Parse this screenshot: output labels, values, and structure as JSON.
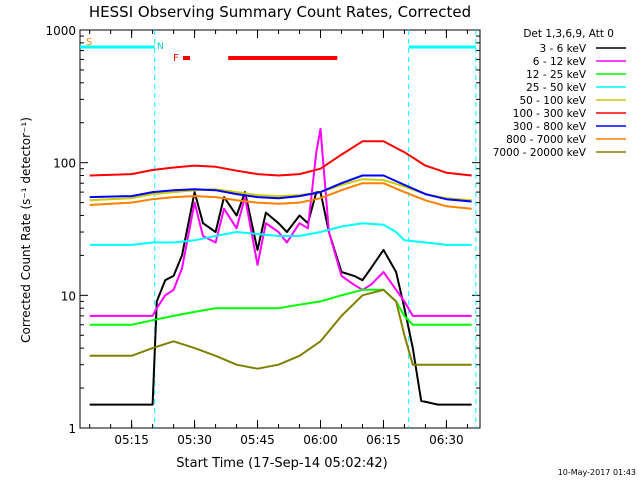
{
  "chart_data": {
    "type": "line",
    "title": "HESSI Observing Summary Count Rates, Corrected",
    "xlabel": "Start Time (17-Sep-14 05:02:42)",
    "ylabel": "Corrected Count Rate (s⁻¹ detector⁻¹)",
    "footer": "10-May-2017 01:43",
    "y_scale": "log",
    "ylim": [
      1,
      1000
    ],
    "xlim": [
      "05:02:42",
      "06:38:00"
    ],
    "x_ticks": [
      "05:15",
      "05:30",
      "05:45",
      "06:00",
      "06:15",
      "06:30"
    ],
    "y_ticks": [
      "1",
      "10",
      "100",
      "1000"
    ],
    "legend_header": "Det 1,3,6,9, Att 0",
    "legend_position": "right",
    "grid": false,
    "flags": {
      "s_label": "S",
      "n_label": "N",
      "f_label": "F",
      "saa_intervals": [
        [
          "05:02:42",
          "05:20:30"
        ],
        [
          "06:21:00",
          "06:37:00"
        ]
      ],
      "night_boundaries": [
        "05:20:30",
        "06:21:00",
        "06:37:00"
      ],
      "flare_interval": [
        "05:38:00",
        "06:04:00"
      ]
    },
    "series": [
      {
        "name": "3 - 6 keV",
        "color": "#000000",
        "x": [
          "05:05",
          "05:20",
          "05:21",
          "05:23",
          "05:25",
          "05:27",
          "05:30",
          "05:32",
          "05:35",
          "05:37",
          "05:40",
          "05:42",
          "05:45",
          "05:47",
          "05:50",
          "05:52",
          "05:55",
          "05:57",
          "05:59",
          "06:00",
          "06:02",
          "06:05",
          "06:08",
          "06:10",
          "06:12",
          "06:15",
          "06:18",
          "06:20",
          "06:22",
          "06:24",
          "06:28",
          "06:33",
          "06:36"
        ],
        "y": [
          1.5,
          1.5,
          9,
          13,
          14,
          20,
          60,
          35,
          30,
          55,
          40,
          60,
          22,
          42,
          35,
          30,
          40,
          35,
          60,
          60,
          30,
          15,
          14,
          13,
          16,
          22,
          15,
          8,
          4,
          1.6,
          1.5,
          1.5,
          1.5
        ]
      },
      {
        "name": "6 - 12 keV",
        "color": "#ff00ff",
        "x": [
          "05:05",
          "05:20",
          "05:21",
          "05:23",
          "05:25",
          "05:27",
          "05:30",
          "05:32",
          "05:35",
          "05:37",
          "05:40",
          "05:42",
          "05:45",
          "05:47",
          "05:50",
          "05:52",
          "05:55",
          "05:57",
          "05:59",
          "06:00",
          "06:02",
          "06:05",
          "06:08",
          "06:10",
          "06:12",
          "06:15",
          "06:18",
          "06:20",
          "06:22",
          "06:25",
          "06:30",
          "06:36"
        ],
        "y": [
          7,
          7,
          8,
          10,
          11,
          16,
          50,
          28,
          25,
          45,
          32,
          55,
          17,
          35,
          30,
          25,
          35,
          32,
          120,
          180,
          30,
          14,
          12,
          11,
          12,
          15,
          11,
          9,
          7,
          7,
          7,
          7
        ]
      },
      {
        "name": "12 - 25 keV",
        "color": "#00ff00",
        "x": [
          "05:05",
          "05:15",
          "05:20",
          "05:25",
          "05:30",
          "05:35",
          "05:40",
          "05:45",
          "05:50",
          "05:55",
          "06:00",
          "06:05",
          "06:10",
          "06:15",
          "06:18",
          "06:20",
          "06:22",
          "06:25",
          "06:30",
          "06:36"
        ],
        "y": [
          6,
          6,
          6.5,
          7,
          7.5,
          8,
          8,
          8,
          8,
          8.5,
          9,
          10,
          11,
          11,
          9,
          7,
          6,
          6,
          6,
          6
        ]
      },
      {
        "name": "25 - 50 keV",
        "color": "#00ffff",
        "x": [
          "05:05",
          "05:15",
          "05:20",
          "05:25",
          "05:30",
          "05:35",
          "05:40",
          "05:45",
          "05:50",
          "05:55",
          "06:00",
          "06:05",
          "06:10",
          "06:15",
          "06:18",
          "06:20",
          "06:25",
          "06:30",
          "06:36"
        ],
        "y": [
          24,
          24,
          25,
          25,
          26,
          28,
          30,
          29,
          28,
          28,
          30,
          33,
          35,
          34,
          30,
          26,
          25,
          24,
          24
        ]
      },
      {
        "name": "50 - 100 keV",
        "color": "#cccc00",
        "x": [
          "05:05",
          "05:15",
          "05:20",
          "05:25",
          "05:30",
          "05:35",
          "05:40",
          "05:45",
          "05:50",
          "05:55",
          "06:00",
          "06:05",
          "06:10",
          "06:15",
          "06:20",
          "06:25",
          "06:30",
          "06:36"
        ],
        "y": [
          52,
          54,
          58,
          60,
          62,
          63,
          60,
          57,
          56,
          57,
          60,
          68,
          75,
          74,
          66,
          58,
          54,
          52
        ]
      },
      {
        "name": "100 - 300 keV",
        "color": "#ff0000",
        "x": [
          "05:05",
          "05:15",
          "05:20",
          "05:25",
          "05:30",
          "05:35",
          "05:40",
          "05:45",
          "05:50",
          "05:55",
          "06:00",
          "06:05",
          "06:10",
          "06:15",
          "06:20",
          "06:25",
          "06:30",
          "06:36"
        ],
        "y": [
          80,
          82,
          88,
          92,
          95,
          93,
          87,
          82,
          80,
          82,
          90,
          115,
          145,
          145,
          120,
          95,
          84,
          80
        ]
      },
      {
        "name": "300 - 800 keV",
        "color": "#0000ff",
        "x": [
          "05:05",
          "05:15",
          "05:20",
          "05:25",
          "05:30",
          "05:35",
          "05:40",
          "05:45",
          "05:50",
          "05:55",
          "06:00",
          "06:05",
          "06:10",
          "06:15",
          "06:20",
          "06:25",
          "06:30",
          "06:36"
        ],
        "y": [
          55,
          56,
          60,
          62,
          63,
          62,
          58,
          55,
          54,
          56,
          60,
          70,
          80,
          80,
          68,
          58,
          53,
          51
        ]
      },
      {
        "name": "800 - 7000 keV",
        "color": "#ff8000",
        "x": [
          "05:05",
          "05:15",
          "05:20",
          "05:25",
          "05:30",
          "05:35",
          "05:40",
          "05:45",
          "05:50",
          "05:55",
          "06:00",
          "06:05",
          "06:10",
          "06:15",
          "06:20",
          "06:25",
          "06:30",
          "06:36"
        ],
        "y": [
          48,
          50,
          53,
          55,
          56,
          55,
          52,
          50,
          49,
          50,
          54,
          62,
          70,
          70,
          60,
          52,
          47,
          45
        ]
      },
      {
        "name": "7000 - 20000 keV",
        "color": "#808000",
        "x": [
          "05:05",
          "05:15",
          "05:20",
          "05:25",
          "05:30",
          "05:35",
          "05:40",
          "05:45",
          "05:50",
          "05:55",
          "06:00",
          "06:05",
          "06:10",
          "06:15",
          "06:18",
          "06:20",
          "06:22",
          "06:25",
          "06:30",
          "06:36"
        ],
        "y": [
          3.5,
          3.5,
          4,
          4.5,
          4,
          3.5,
          3,
          2.8,
          3,
          3.5,
          4.5,
          7,
          10,
          11,
          9,
          5,
          3,
          3,
          3,
          3
        ]
      }
    ]
  }
}
